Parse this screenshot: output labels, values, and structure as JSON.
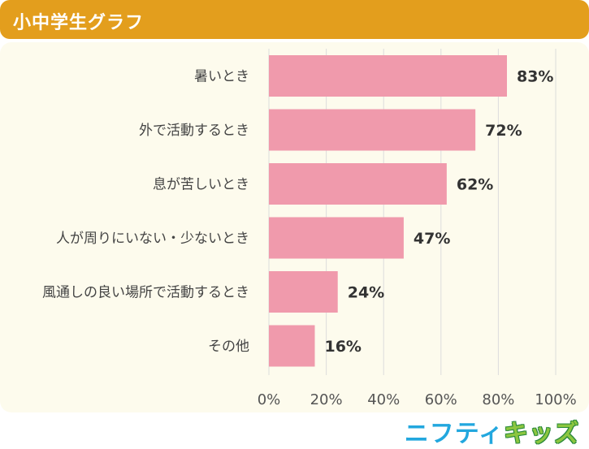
{
  "header": {
    "title": "小中学生グラフ"
  },
  "chart_data": {
    "type": "bar",
    "orientation": "horizontal",
    "categories": [
      "暑いとき",
      "外で活動するとき",
      "息が苦しいとき",
      "人が周りにいない・少ないとき",
      "風通しの良い場所で活動するとき",
      "その他"
    ],
    "values": [
      83,
      72,
      62,
      47,
      24,
      16
    ],
    "value_labels": [
      "83%",
      "72%",
      "62%",
      "47%",
      "24%",
      "16%"
    ],
    "xlim": [
      0,
      100
    ],
    "xticks": [
      0,
      20,
      40,
      60,
      80,
      100
    ],
    "xtick_labels": [
      "0%",
      "20%",
      "40%",
      "60%",
      "80%",
      "100%"
    ],
    "grid": true,
    "bar_color": "#f09aac",
    "grid_color": "#dcdcdc"
  },
  "footer": {
    "logo_part1": "ニフティ",
    "logo_part2": "キッズ"
  },
  "colors": {
    "header": "#e39e1d",
    "panel": "#fdfbed",
    "logo_blue": "#22a7de",
    "logo_green": "#8cc63f"
  }
}
